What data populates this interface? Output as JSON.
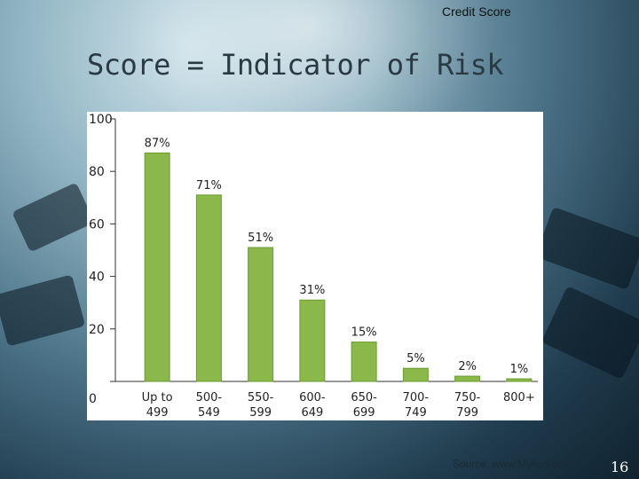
{
  "slide": {
    "header": "Credit Score",
    "title": "Score = Indicator of Risk",
    "source": "Source: www.Myfico.com",
    "page_number": "16"
  },
  "colors": {
    "bar": "#8bb84a",
    "bar_stroke": "#6e9a33",
    "text": "#222222"
  },
  "chart_data": {
    "type": "bar",
    "categories": [
      [
        "Up to",
        "499"
      ],
      [
        "500-",
        "549"
      ],
      [
        "550-",
        "599"
      ],
      [
        "600-",
        "649"
      ],
      [
        "650-",
        "699"
      ],
      [
        "700-",
        "749"
      ],
      [
        "750-",
        "799"
      ],
      [
        "800+",
        ""
      ]
    ],
    "values": [
      87,
      71,
      51,
      31,
      15,
      5,
      2,
      1
    ],
    "data_labels": [
      "87%",
      "71%",
      "51%",
      "31%",
      "15%",
      "5%",
      "2%",
      "1%"
    ],
    "yticks": [
      "0",
      "20",
      "40",
      "60",
      "80",
      "100"
    ],
    "ylim": [
      0,
      100
    ],
    "title": "",
    "xlabel": "",
    "ylabel": "",
    "grid": false
  }
}
